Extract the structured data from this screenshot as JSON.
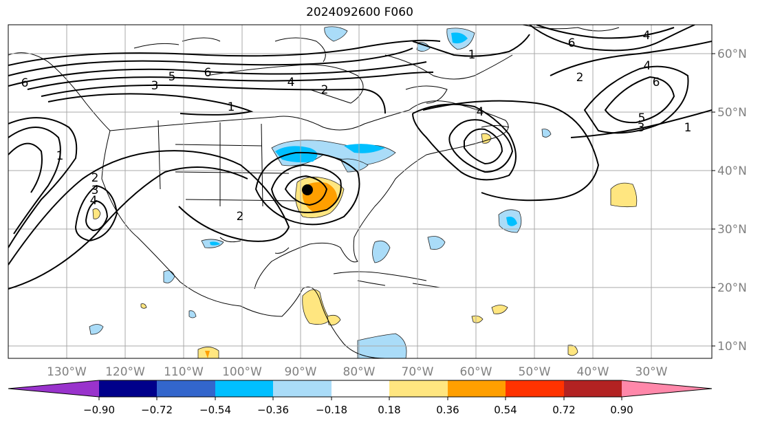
{
  "title": "2024092600 F060",
  "lon_labels": [
    "130°W",
    "120°W",
    "110°W",
    "100°W",
    "90°W",
    "80°W",
    "70°W",
    "60°W",
    "50°W",
    "40°W",
    "30°W"
  ],
  "lat_labels": [
    "60°N",
    "50°N",
    "40°N",
    "30°N",
    "20°N",
    "10°N"
  ],
  "colorbar": {
    "colors": [
      "#9933cc",
      "#00008b",
      "#3366cc",
      "#00bfff",
      "#aadcf8",
      "#ffffff",
      "#ffe680",
      "#ff9f00",
      "#ff3300",
      "#b22222",
      "#ff88aa"
    ],
    "ticks": [
      "−0.90",
      "−0.72",
      "−0.54",
      "−0.36",
      "−0.18",
      "0.18",
      "0.36",
      "0.54",
      "0.72",
      "0.90"
    ]
  },
  "contour_labels": [
    {
      "text": "6"
    },
    {
      "text": "3"
    },
    {
      "text": "5"
    },
    {
      "text": "6"
    },
    {
      "text": "4"
    },
    {
      "text": "2"
    },
    {
      "text": "1"
    },
    {
      "text": "1"
    },
    {
      "text": "2"
    },
    {
      "text": "3"
    },
    {
      "text": "4"
    },
    {
      "text": "2"
    },
    {
      "text": "1"
    },
    {
      "text": "6"
    },
    {
      "text": "4"
    },
    {
      "text": "2"
    },
    {
      "text": "4"
    },
    {
      "text": "6"
    },
    {
      "text": "5"
    },
    {
      "text": "3"
    },
    {
      "text": "1"
    },
    {
      "text": "4"
    }
  ]
}
